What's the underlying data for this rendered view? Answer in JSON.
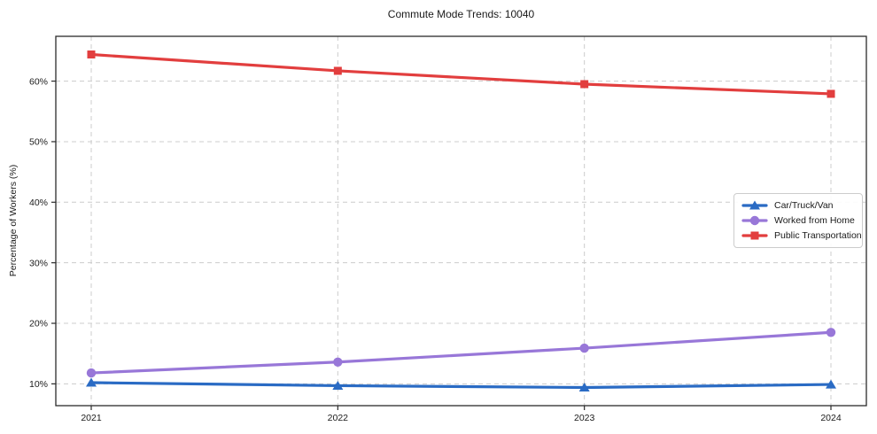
{
  "chart_data": {
    "type": "line",
    "title": "Commute Mode Trends: 10040",
    "xlabel": "",
    "ylabel": "Percentage of Workers (%)",
    "categories": [
      "2021",
      "2022",
      "2023",
      "2024"
    ],
    "series": [
      {
        "name": "Car/Truck/Van",
        "color": "#2a6bc4",
        "marker": "triangle",
        "values": [
          10.2,
          9.7,
          9.4,
          9.9
        ]
      },
      {
        "name": "Worked from Home",
        "color": "#9877d8",
        "marker": "circle",
        "values": [
          11.8,
          13.6,
          15.9,
          18.5
        ]
      },
      {
        "name": "Public Transportation",
        "color": "#e23e3e",
        "marker": "square",
        "values": [
          64.4,
          61.7,
          59.5,
          57.9
        ]
      }
    ],
    "y_ticks": [
      10,
      20,
      30,
      40,
      50,
      60
    ],
    "y_tick_labels": [
      "10%",
      "20%",
      "30%",
      "40%",
      "50%",
      "60%"
    ],
    "ylim": [
      6.4,
      67.4
    ],
    "grid": "dashed",
    "legend_position": "center-right",
    "colors": {
      "axis": "#2b2b2b",
      "grid": "#cccccc",
      "text": "#1a1a1a",
      "background": "#ffffff"
    }
  }
}
